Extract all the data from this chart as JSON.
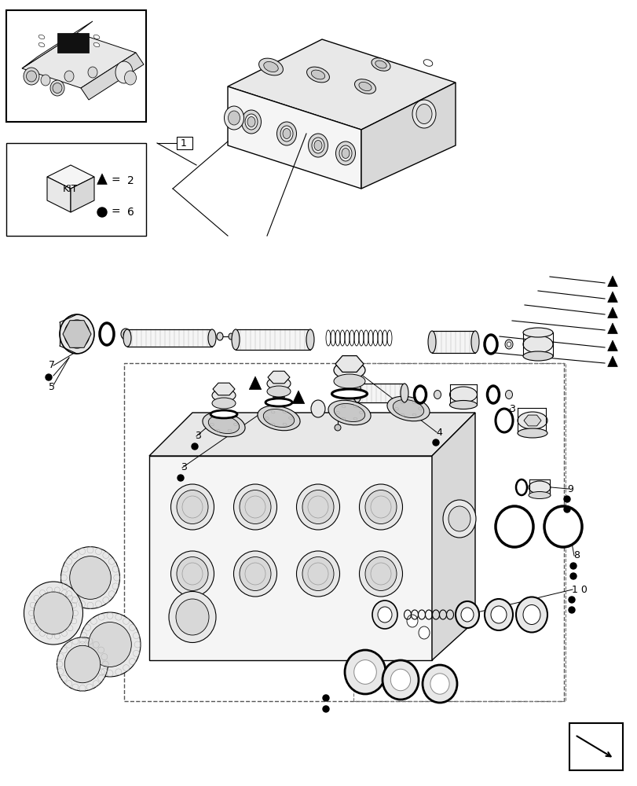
{
  "bg_color": "#ffffff",
  "lc": "#000000",
  "gray1": "#f0f0f0",
  "gray2": "#e0e0e0",
  "gray3": "#d0d0d0",
  "gray4": "#c0c0c0",
  "dark_gray": "#888888"
}
